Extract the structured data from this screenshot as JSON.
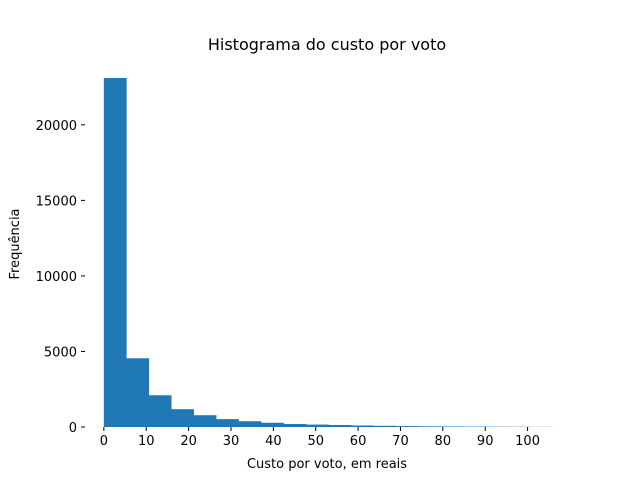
{
  "chart_data": {
    "type": "bar",
    "title": "Histograma do custo por voto",
    "xlabel": "Custo por voto, em reais",
    "ylabel": "Frequência",
    "bin_edges": [
      0,
      5.3,
      10.6,
      15.9,
      21.2,
      26.5,
      31.8,
      37.1,
      42.4,
      47.7,
      53.0,
      58.3,
      63.6,
      68.9,
      74.2,
      79.5,
      84.8,
      90.1,
      95.4,
      100.7,
      106.0
    ],
    "values": [
      23100,
      4550,
      2100,
      1180,
      780,
      520,
      380,
      280,
      200,
      160,
      130,
      100,
      80,
      60,
      45,
      35,
      28,
      20,
      15,
      10
    ],
    "xlim": [
      -0.2,
      106
    ],
    "ylim": [
      0,
      23300
    ],
    "xticks": [
      0,
      10,
      20,
      30,
      40,
      50,
      60,
      70,
      80,
      90,
      100
    ],
    "yticks": [
      0,
      5000,
      10000,
      15000,
      20000
    ],
    "grid": false,
    "legend": "none",
    "bar_color": "#1f77b4"
  }
}
